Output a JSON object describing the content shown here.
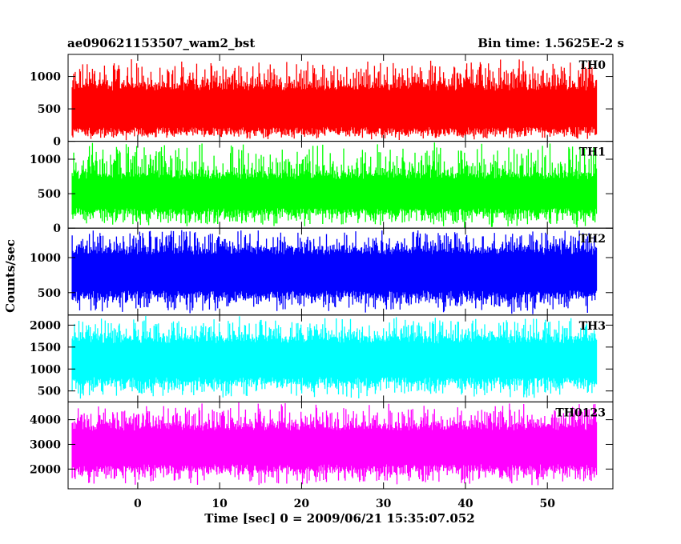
{
  "chart_data": {
    "type": "line",
    "title": "ae090621153507_wam2_bst",
    "subtitle": "Bin time: 1.5625E-2 s",
    "xlabel": "Time [sec] 0 = 2009/06/21 15:35:07.052",
    "ylabel": "Counts/sec",
    "xlim": [
      -8.5,
      58
    ],
    "data_xrange": [
      -8,
      56
    ],
    "xticks": [
      0,
      10,
      20,
      30,
      40,
      50
    ],
    "grid": false,
    "panels": [
      {
        "name": "TH0",
        "color": "#ff0000",
        "ylim": [
          0,
          1340
        ],
        "yticks": [
          0,
          500,
          1000
        ],
        "band": {
          "base_low": 100,
          "base_high": 900,
          "spike_low": 10,
          "spike_high": 1300
        }
      },
      {
        "name": "TH1",
        "color": "#00ff00",
        "ylim": [
          0,
          1260
        ],
        "yticks": [
          0,
          500,
          1000
        ],
        "band": {
          "base_low": 200,
          "base_high": 800,
          "spike_low": 5,
          "spike_high": 1260
        }
      },
      {
        "name": "TH2",
        "color": "#0000ff",
        "ylim": [
          180,
          1420
        ],
        "yticks": [
          500,
          1000
        ],
        "band": {
          "base_low": 420,
          "base_high": 1150,
          "spike_low": 180,
          "spike_high": 1420
        }
      },
      {
        "name": "TH3",
        "color": "#00ffff",
        "ylim": [
          250,
          2230
        ],
        "yticks": [
          500,
          1000,
          1500,
          2000
        ],
        "band": {
          "base_low": 650,
          "base_high": 1750,
          "spike_low": 300,
          "spike_high": 2230
        }
      },
      {
        "name": "TH0123",
        "color": "#ff00ff",
        "ylim": [
          1200,
          4720
        ],
        "yticks": [
          2000,
          3000,
          4000
        ],
        "band": {
          "base_low": 1900,
          "base_high": 3850,
          "spike_low": 1300,
          "spike_high": 4720
        }
      }
    ]
  }
}
